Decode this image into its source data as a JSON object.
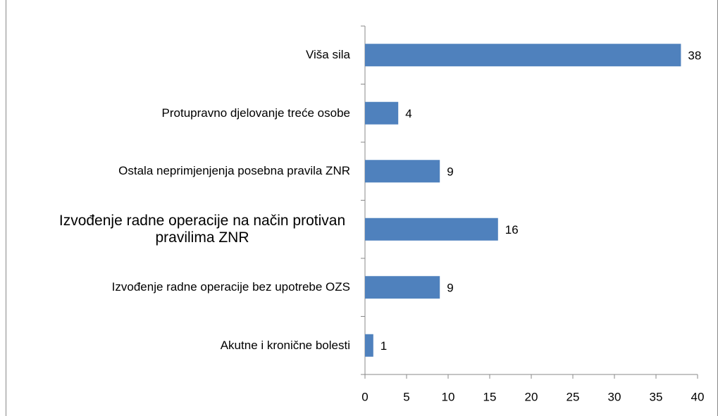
{
  "chart_data": {
    "type": "bar",
    "orientation": "horizontal",
    "categories": [
      "Viša sila",
      "Protupravno djelovanje treće osobe",
      "Ostala neprimjenjenja posebna pravila ZNR",
      "Izvođenje radne operacije na način protivan pravilima ZNR",
      "Izvođenje radne operacije bez upotrebe OZS",
      "Akutne i kronične bolesti"
    ],
    "values": [
      38,
      4,
      9,
      16,
      9,
      1
    ],
    "color": "#4f81bd",
    "xlim": [
      0,
      40
    ],
    "xticks": [
      0,
      5,
      10,
      15,
      20,
      25,
      30,
      35,
      40
    ],
    "grid": false
  }
}
